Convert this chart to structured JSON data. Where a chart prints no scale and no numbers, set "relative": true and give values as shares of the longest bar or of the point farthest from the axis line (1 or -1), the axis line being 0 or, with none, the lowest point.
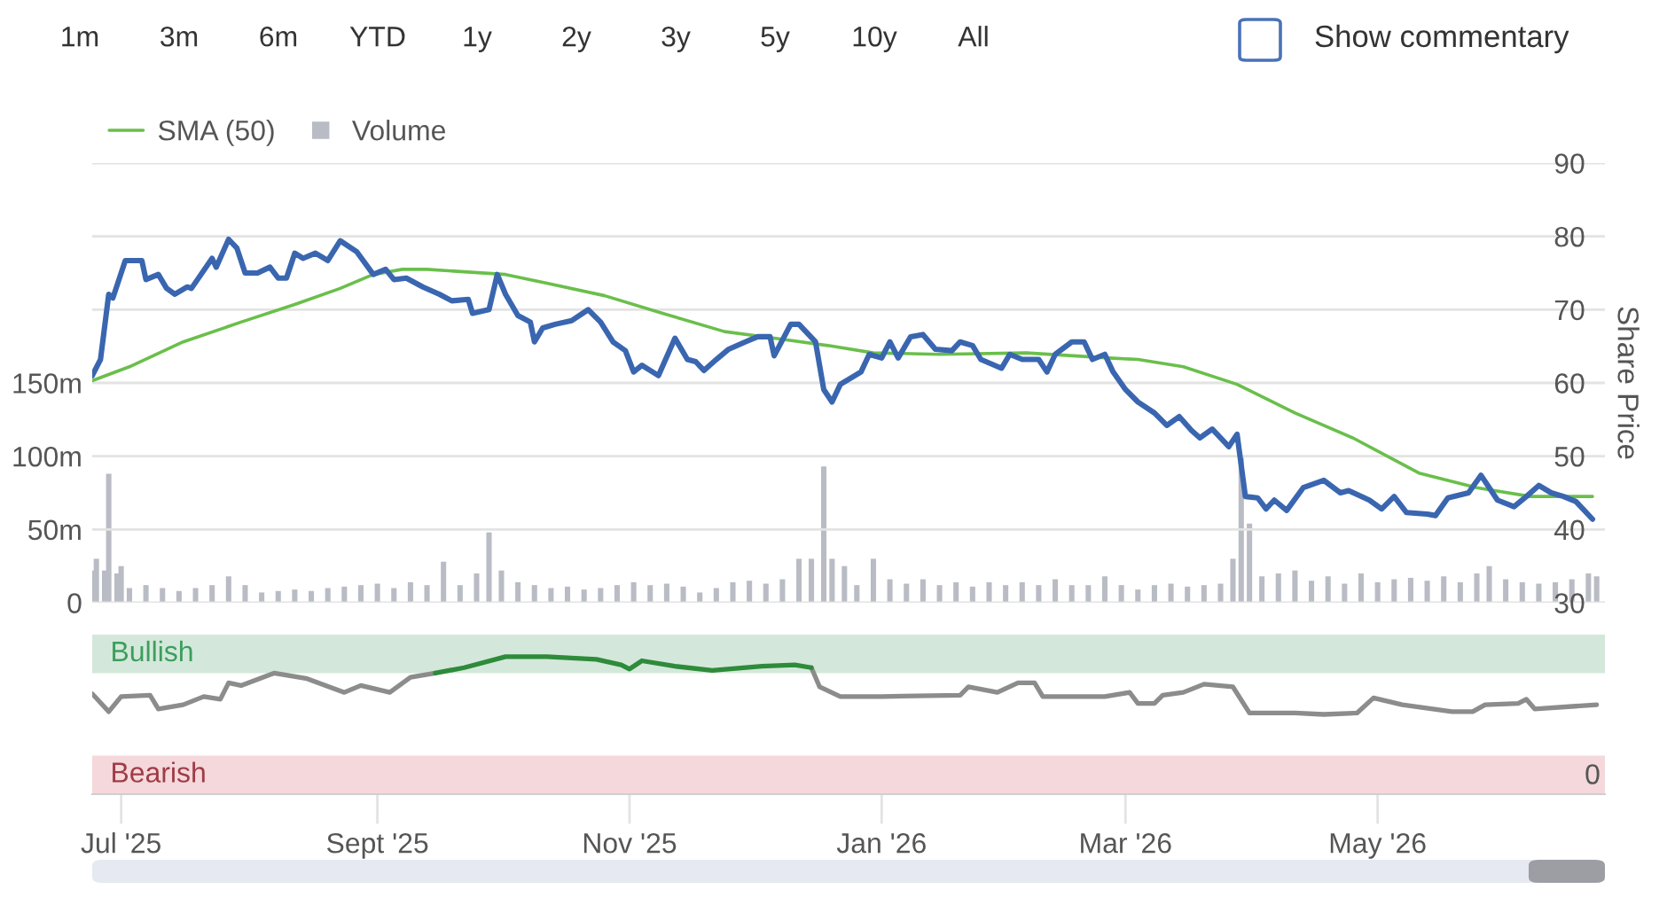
{
  "chart_data": [
    {
      "type": "line",
      "ylabel": "Share Price",
      "ylim": [
        30,
        90
      ],
      "yticks": [
        30,
        40,
        50,
        60,
        70,
        80,
        90
      ],
      "y2lim": [
        0,
        300
      ],
      "y2ticks": [
        {
          "value": 0,
          "label": "0"
        },
        {
          "value": 50,
          "label": "50m"
        },
        {
          "value": 100,
          "label": "100m"
        },
        {
          "value": 150,
          "label": "150m"
        }
      ],
      "xlim": [
        "2025-06-24",
        "2026-06-25"
      ],
      "tick_labels": "y",
      "grid": "y",
      "legend": "top left",
      "annotations": [
        "1m",
        "3m",
        "6m",
        "YTD",
        "1y",
        "2y",
        "3y",
        "5y",
        "10y",
        "All",
        "Show commentary"
      ],
      "series": [
        {
          "type": "line",
          "name": "SMA (50)",
          "color": "#6abf4b",
          "x": [
            "2025-06-24",
            "2025-07-03",
            "2025-07-16",
            "2025-07-30",
            "2025-08-12",
            "2025-08-23",
            "2025-08-31",
            "2025-09-07",
            "2025-09-13",
            "2025-10-02",
            "2025-10-12",
            "2025-10-26",
            "2025-11-09",
            "2025-11-24",
            "2025-12-06",
            "2025-12-19",
            "2025-12-30",
            "2026-01-15",
            "2026-02-05",
            "2026-02-25",
            "2026-03-04",
            "2026-03-15",
            "2026-03-28",
            "2026-04-11",
            "2026-04-25",
            "2026-05-11",
            "2026-05-25",
            "2026-06-07",
            "2026-06-22"
          ],
          "values": [
            60.3,
            62.2,
            65.6,
            68.3,
            70.7,
            72.9,
            74.8,
            75.5,
            75.5,
            74.8,
            73.6,
            71.9,
            69.5,
            67.0,
            66.1,
            65.1,
            64.1,
            63.9,
            64.1,
            63.4,
            63.2,
            62.2,
            59.8,
            55.9,
            52.5,
            47.7,
            45.7,
            44.5,
            44.5
          ]
        },
        {
          "type": "bar",
          "name": "Volume",
          "axis": "y2",
          "color": "#b9bcc4",
          "x": [
            "2025-06-24",
            "2025-06-25",
            "2025-06-27",
            "2025-06-28",
            "2025-06-30",
            "2025-07-01",
            "2025-07-03",
            "2025-07-07",
            "2025-07-11",
            "2025-07-15",
            "2025-07-19",
            "2025-07-23",
            "2025-07-27",
            "2025-07-31",
            "2025-08-04",
            "2025-08-08",
            "2025-08-12",
            "2025-08-16",
            "2025-08-20",
            "2025-08-24",
            "2025-08-28",
            "2025-09-01",
            "2025-09-05",
            "2025-09-09",
            "2025-09-13",
            "2025-09-17",
            "2025-09-21",
            "2025-09-25",
            "2025-09-28",
            "2025-10-01",
            "2025-10-05",
            "2025-10-09",
            "2025-10-13",
            "2025-10-17",
            "2025-10-21",
            "2025-10-25",
            "2025-10-29",
            "2025-11-02",
            "2025-11-06",
            "2025-11-10",
            "2025-11-14",
            "2025-11-18",
            "2025-11-22",
            "2025-11-26",
            "2025-11-30",
            "2025-12-04",
            "2025-12-08",
            "2025-12-12",
            "2025-12-15",
            "2025-12-18",
            "2025-12-20",
            "2025-12-23",
            "2025-12-26",
            "2025-12-30",
            "2026-01-03",
            "2026-01-07",
            "2026-01-11",
            "2026-01-15",
            "2026-01-19",
            "2026-01-23",
            "2026-01-27",
            "2026-01-31",
            "2026-02-04",
            "2026-02-08",
            "2026-02-12",
            "2026-02-16",
            "2026-02-20",
            "2026-02-24",
            "2026-02-28",
            "2026-03-04",
            "2026-03-08",
            "2026-03-12",
            "2026-03-16",
            "2026-03-20",
            "2026-03-24",
            "2026-03-27",
            "2026-03-29",
            "2026-03-31",
            "2026-04-03",
            "2026-04-07",
            "2026-04-11",
            "2026-04-15",
            "2026-04-19",
            "2026-04-23",
            "2026-04-27",
            "2026-05-01",
            "2026-05-05",
            "2026-05-09",
            "2026-05-13",
            "2026-05-17",
            "2026-05-21",
            "2026-05-25",
            "2026-05-28",
            "2026-06-01",
            "2026-06-05",
            "2026-06-09",
            "2026-06-13",
            "2026-06-17",
            "2026-06-21",
            "2026-06-23"
          ],
          "values": [
            22,
            30,
            22,
            88,
            20,
            25,
            10,
            12,
            10,
            8,
            10,
            12,
            18,
            12,
            7,
            8,
            9,
            8,
            10,
            11,
            12,
            13,
            10,
            14,
            12,
            28,
            12,
            20,
            48,
            22,
            14,
            12,
            10,
            11,
            9,
            10,
            12,
            14,
            12,
            13,
            11,
            7,
            10,
            14,
            15,
            13,
            16,
            30,
            30,
            93,
            30,
            25,
            12,
            30,
            16,
            13,
            16,
            12,
            14,
            11,
            14,
            12,
            14,
            12,
            16,
            12,
            12,
            18,
            12,
            9,
            12,
            13,
            11,
            12,
            13,
            30,
            99,
            54,
            18,
            20,
            22,
            15,
            18,
            13,
            20,
            14,
            16,
            17,
            15,
            18,
            14,
            20,
            25,
            16,
            14,
            13,
            14,
            16,
            20,
            18
          ]
        },
        {
          "type": "line",
          "color": "#3a66b0",
          "x": [
            "2025-06-24",
            "2025-06-26",
            "2025-06-28",
            "2025-06-29",
            "2025-07-02",
            "2025-07-06",
            "2025-07-07",
            "2025-07-10",
            "2025-07-12",
            "2025-07-14",
            "2025-07-17",
            "2025-07-18",
            "2025-07-23",
            "2025-07-24",
            "2025-07-27",
            "2025-07-29",
            "2025-07-31",
            "2025-08-03",
            "2025-08-06",
            "2025-08-08",
            "2025-08-10",
            "2025-08-12",
            "2025-08-14",
            "2025-08-17",
            "2025-08-20",
            "2025-08-23",
            "2025-08-27",
            "2025-08-31",
            "2025-09-03",
            "2025-09-05",
            "2025-09-08",
            "2025-09-12",
            "2025-09-16",
            "2025-09-19",
            "2025-09-23",
            "2025-09-24",
            "2025-09-28",
            "2025-09-30",
            "2025-10-02",
            "2025-10-05",
            "2025-10-08",
            "2025-10-09",
            "2025-10-11",
            "2025-10-14",
            "2025-10-18",
            "2025-10-22",
            "2025-10-25",
            "2025-10-28",
            "2025-10-31",
            "2025-11-02",
            "2025-11-04",
            "2025-11-08",
            "2025-11-12",
            "2025-11-15",
            "2025-11-17",
            "2025-11-19",
            "2025-11-22",
            "2025-11-25",
            "2025-11-29",
            "2025-12-02",
            "2025-12-05",
            "2025-12-06",
            "2025-12-10",
            "2025-12-12",
            "2025-12-16",
            "2025-12-18",
            "2025-12-20",
            "2025-12-22",
            "2025-12-27",
            "2025-12-29",
            "2026-01-01",
            "2026-01-03",
            "2026-01-05",
            "2026-01-08",
            "2026-01-11",
            "2026-01-14",
            "2026-01-18",
            "2026-01-20",
            "2026-01-23",
            "2026-01-25",
            "2026-01-30",
            "2026-02-01",
            "2026-02-04",
            "2026-02-08",
            "2026-02-10",
            "2026-02-12",
            "2026-02-16",
            "2026-02-19",
            "2026-02-21",
            "2026-02-24",
            "2026-02-26",
            "2026-03-01",
            "2026-03-04",
            "2026-03-08",
            "2026-03-11",
            "2026-03-14",
            "2026-03-17",
            "2026-03-19",
            "2026-03-22",
            "2026-03-26",
            "2026-03-28",
            "2026-03-30",
            "2026-04-02",
            "2026-04-04",
            "2026-04-06",
            "2026-04-09",
            "2026-04-13",
            "2026-04-18",
            "2026-04-22",
            "2026-04-24",
            "2026-04-29",
            "2026-05-02",
            "2026-05-05",
            "2026-05-08",
            "2026-05-13",
            "2026-05-15",
            "2026-05-18",
            "2026-05-23",
            "2026-05-26",
            "2026-05-30",
            "2026-06-03",
            "2026-06-06",
            "2026-06-09",
            "2026-06-12",
            "2026-06-15",
            "2026-06-18",
            "2026-06-22"
          ],
          "values": [
            61.0,
            63.2,
            72.1,
            71.6,
            76.7,
            76.7,
            74.1,
            74.8,
            72.9,
            72.1,
            73.1,
            72.9,
            77.0,
            75.8,
            79.6,
            78.4,
            75.0,
            75.0,
            75.8,
            74.3,
            74.3,
            77.7,
            77.0,
            77.7,
            76.7,
            79.4,
            77.9,
            74.8,
            75.5,
            74.1,
            74.3,
            73.1,
            72.1,
            71.2,
            71.4,
            69.5,
            70.0,
            74.8,
            72.1,
            69.2,
            68.3,
            65.6,
            67.5,
            68.0,
            68.5,
            70.0,
            68.3,
            65.6,
            64.4,
            61.5,
            62.4,
            61.0,
            66.1,
            63.2,
            62.9,
            61.7,
            63.2,
            64.6,
            65.6,
            66.3,
            66.3,
            63.7,
            68.0,
            68.0,
            65.6,
            59.1,
            57.4,
            59.8,
            61.5,
            63.9,
            63.4,
            65.6,
            63.4,
            66.3,
            66.6,
            64.6,
            64.4,
            65.6,
            65.1,
            63.2,
            62.0,
            63.9,
            63.2,
            63.2,
            61.5,
            63.9,
            65.6,
            65.6,
            63.2,
            63.9,
            61.5,
            59.1,
            57.4,
            55.9,
            54.2,
            55.4,
            53.5,
            52.5,
            53.7,
            51.3,
            53.0,
            44.5,
            44.3,
            42.8,
            44.0,
            42.6,
            45.7,
            46.7,
            45.0,
            45.3,
            44.0,
            42.8,
            44.5,
            42.3,
            42.1,
            41.9,
            44.3,
            45.0,
            47.4,
            44.0,
            43.1,
            44.5,
            46.0,
            45.0,
            44.5,
            43.8,
            41.4
          ]
        }
      ]
    },
    {
      "type": "line",
      "relative": true,
      "xlim": [
        "2025-06-24",
        "2026-06-25"
      ],
      "xticks": [
        {
          "value": "2025-07-01",
          "label": "Jul '25"
        },
        {
          "value": "2025-09-01",
          "label": "Sept '25"
        },
        {
          "value": "2025-11-01",
          "label": "Nov '25"
        },
        {
          "value": "2026-01-01",
          "label": "Jan '26"
        },
        {
          "value": "2026-03-01",
          "label": "Mar '26"
        },
        {
          "value": "2026-05-01",
          "label": "May '26"
        }
      ],
      "tick_labels": "x",
      "bands": [
        {
          "axis": "y",
          "from": 0.88,
          "to": 1.16,
          "label": "Bullish",
          "color": "#d3e8da"
        },
        {
          "axis": "y",
          "from": 0.0,
          "to": 0.28,
          "label": "Bearish",
          "color": "#f5d8db"
        }
      ],
      "annotations": [
        "0"
      ],
      "x": [
        "2025-06-24",
        "2025-06-28",
        "2025-07-01",
        "2025-07-08",
        "2025-07-10",
        "2025-07-16",
        "2025-07-21",
        "2025-07-25",
        "2025-07-27",
        "2025-07-30",
        "2025-08-07",
        "2025-08-15",
        "2025-08-24",
        "2025-08-28",
        "2025-09-04",
        "2025-09-09",
        "2025-09-15",
        "2025-09-22",
        "2025-10-02",
        "2025-10-12",
        "2025-10-24",
        "2025-10-30",
        "2025-11-01",
        "2025-11-04",
        "2025-11-12",
        "2025-11-21",
        "2025-12-03",
        "2025-12-11",
        "2025-12-15",
        "2025-12-17",
        "2025-12-22",
        "2026-01-01",
        "2026-01-20",
        "2026-01-22",
        "2026-01-29",
        "2026-02-03",
        "2026-02-07",
        "2026-02-09",
        "2026-02-24",
        "2026-03-02",
        "2026-03-04",
        "2026-03-08",
        "2026-03-10",
        "2026-03-15",
        "2026-03-20",
        "2026-03-27",
        "2026-03-31",
        "2026-04-11",
        "2026-04-18",
        "2026-04-26",
        "2026-04-30",
        "2026-05-07",
        "2026-05-19",
        "2026-05-24",
        "2026-05-27",
        "2026-06-04",
        "2026-06-06",
        "2026-06-08",
        "2026-06-23"
      ],
      "series": [
        {
          "color": "#8c8c8c",
          "values": [
            0.73,
            0.6,
            0.71,
            0.72,
            0.62,
            0.65,
            0.71,
            0.69,
            0.81,
            0.79,
            0.88,
            0.84,
            0.74,
            0.79,
            0.74,
            0.85,
            0.88,
            null,
            null,
            null,
            null,
            null,
            null,
            null,
            null,
            null,
            null,
            null,
            0.92,
            0.78,
            0.71,
            0.71,
            0.72,
            0.78,
            0.74,
            0.81,
            0.81,
            0.71,
            0.71,
            0.74,
            0.66,
            0.66,
            0.72,
            0.74,
            0.8,
            0.78,
            0.59,
            0.59,
            0.58,
            0.59,
            0.7,
            0.65,
            0.6,
            0.6,
            0.65,
            0.66,
            0.69,
            0.62,
            0.65
          ]
        },
        {
          "color": "#2e8b3a",
          "values": [
            null,
            null,
            null,
            null,
            null,
            null,
            null,
            null,
            null,
            null,
            null,
            null,
            null,
            null,
            null,
            null,
            0.88,
            0.92,
            1.0,
            1.0,
            0.98,
            0.94,
            0.91,
            0.97,
            0.93,
            0.9,
            0.93,
            0.94,
            0.92,
            null,
            null,
            null,
            null,
            null,
            null,
            null,
            null,
            null,
            null,
            null,
            null,
            null,
            null,
            null,
            null,
            null,
            null,
            null,
            null,
            null,
            null,
            null,
            null,
            null,
            null,
            null,
            null,
            null,
            null
          ]
        }
      ]
    }
  ]
}
